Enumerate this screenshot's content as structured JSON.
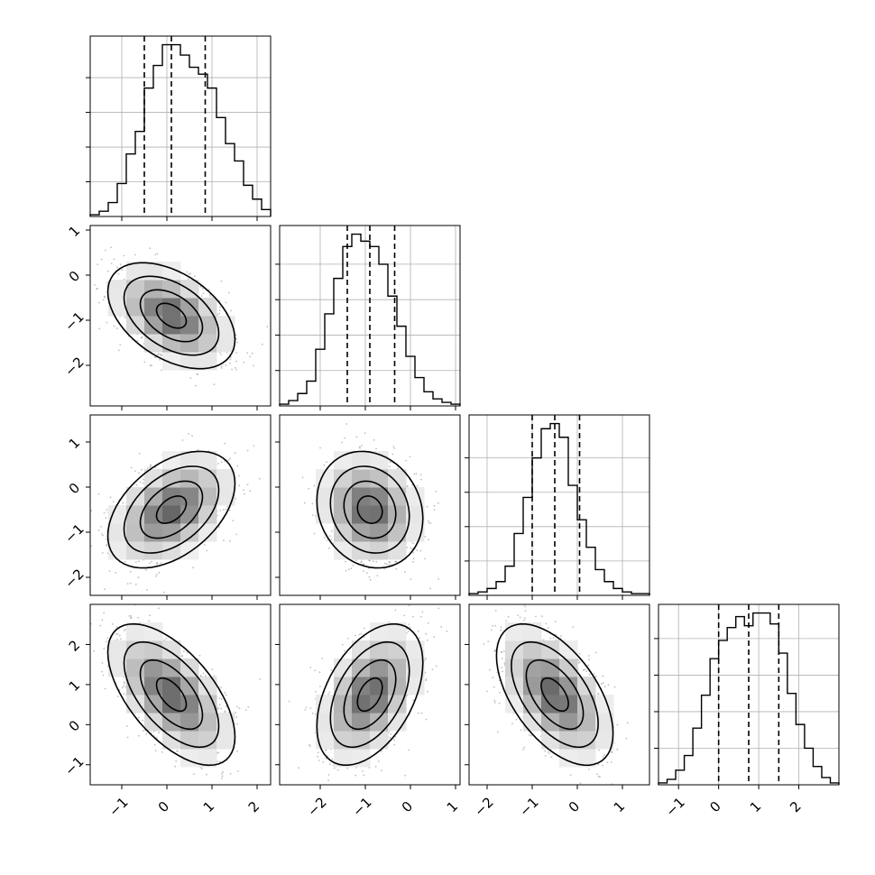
{
  "chart_data": {
    "type": "corner",
    "params": [
      {
        "mean": 0.1,
        "sd": 0.6,
        "lim": [
          -1.7,
          2.3
        ],
        "ticks": [
          -1,
          0,
          1,
          2
        ],
        "quantiles": [
          -0.5,
          0.1,
          0.85
        ]
      },
      {
        "mean": -0.9,
        "sd": 0.5,
        "lim": [
          -2.9,
          1.1
        ],
        "ticks": [
          -2,
          -1,
          0,
          1
        ],
        "quantiles": [
          -1.4,
          -0.9,
          -0.35
        ]
      },
      {
        "mean": -0.5,
        "sd": 0.55,
        "lim": [
          -2.4,
          1.6
        ],
        "ticks": [
          -2,
          -1,
          0,
          1
        ],
        "quantiles": [
          -1.0,
          -0.5,
          0.05
        ]
      },
      {
        "mean": 0.75,
        "sd": 0.75,
        "lim": [
          -1.5,
          3.0
        ],
        "ticks": [
          -1,
          0,
          1,
          2
        ],
        "quantiles": [
          0.0,
          0.75,
          1.5
        ]
      }
    ],
    "correlations": [
      [
        1.0,
        -0.45,
        0.45,
        -0.6
      ],
      [
        -0.45,
        1.0,
        -0.15,
        0.45
      ],
      [
        0.45,
        -0.15,
        1.0,
        -0.55
      ],
      [
        -0.6,
        0.45,
        -0.55,
        1.0
      ]
    ],
    "histograms": [
      {
        "bins": [
          -1.7,
          2.3
        ],
        "counts": [
          1,
          3,
          8,
          19,
          36,
          49,
          74,
          87,
          99,
          99,
          93,
          86,
          82,
          74,
          57,
          42,
          32,
          18,
          10,
          4
        ]
      },
      {
        "bins": [
          -2.9,
          1.1
        ],
        "counts": [
          1,
          3,
          7,
          14,
          32,
          52,
          72,
          90,
          97,
          93,
          90,
          80,
          62,
          45,
          28,
          16,
          8,
          4,
          2,
          1
        ]
      },
      {
        "bins": [
          -2.4,
          1.6
        ],
        "counts": [
          1,
          2,
          4,
          8,
          17,
          36,
          57,
          80,
          97,
          100,
          92,
          64,
          44,
          28,
          15,
          8,
          4,
          2,
          1,
          1
        ]
      },
      {
        "bins": [
          -1.5,
          3.0
        ],
        "counts": [
          1,
          3,
          8,
          16,
          31,
          49,
          69,
          79,
          86,
          92,
          87,
          94,
          94,
          88,
          72,
          50,
          33,
          20,
          10,
          4,
          1
        ]
      }
    ]
  }
}
